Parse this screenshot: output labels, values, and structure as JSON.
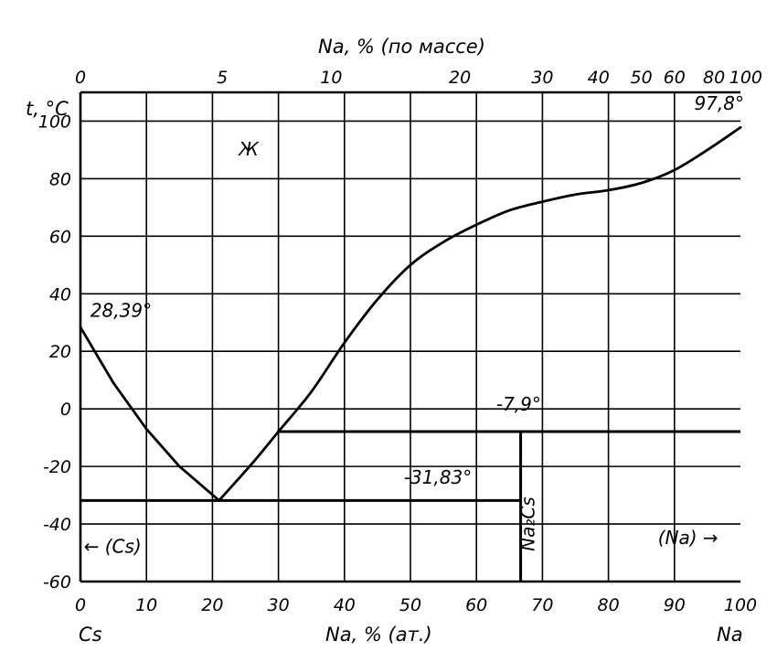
{
  "chart_data": {
    "type": "line",
    "title": "",
    "xlabel": "Na, % (ат.)",
    "x2label": "Na, % (по массе)",
    "ylabel": "t, °C",
    "xlim": [
      0,
      100
    ],
    "ylim": [
      -60,
      110
    ],
    "grid": true,
    "x_ticks": [
      0,
      10,
      20,
      30,
      40,
      50,
      60,
      70,
      80,
      90,
      100
    ],
    "y_ticks": [
      -60,
      -40,
      -20,
      0,
      20,
      40,
      60,
      80,
      100
    ],
    "top_ticks": [
      {
        "label": "0",
        "at": 0
      },
      {
        "label": "5",
        "at": 21.5
      },
      {
        "label": "10",
        "at": 38
      },
      {
        "label": "20",
        "at": 57.5
      },
      {
        "label": "30",
        "at": 70
      },
      {
        "label": "40",
        "at": 78.5
      },
      {
        "label": "50",
        "at": 85
      },
      {
        "label": "60",
        "at": 90
      },
      {
        "label": "80",
        "at": 96
      },
      {
        "label": "100",
        "at": 100
      }
    ],
    "end_labels": {
      "left": "Cs",
      "right": "Na"
    },
    "series": [
      {
        "values": [
          [
            0,
            28.39
          ],
          [
            5,
            9
          ],
          [
            10,
            -7
          ],
          [
            15,
            -20
          ],
          [
            21,
            -31.83
          ]
        ]
      },
      {
        "values": [
          [
            21,
            -31.83
          ],
          [
            26,
            -19
          ],
          [
            30,
            -7.9
          ],
          [
            35,
            6
          ],
          [
            40,
            23
          ],
          [
            45,
            38
          ],
          [
            50,
            50
          ],
          [
            55,
            58
          ],
          [
            60,
            64
          ],
          [
            65,
            69
          ],
          [
            70,
            72
          ],
          [
            75,
            74.5
          ],
          [
            80,
            76
          ],
          [
            85,
            78.5
          ],
          [
            90,
            83
          ],
          [
            95,
            90
          ],
          [
            100,
            97.8
          ]
        ]
      }
    ],
    "horizontal_lines": [
      {
        "y": -31.83,
        "x": [
          0,
          66.7
        ]
      },
      {
        "y": -7.9,
        "x": [
          29.8,
          100
        ]
      }
    ],
    "vertical_lines": [
      {
        "x": 66.7,
        "y": [
          -60,
          -7.9
        ]
      }
    ],
    "annotations": [
      {
        "text": "28,39°",
        "x": 1.5,
        "y": 32
      },
      {
        "text": "97,8°",
        "x": 93,
        "y": 104
      },
      {
        "text": "-7,9°",
        "x": 63,
        "y": -0.5
      },
      {
        "text": "-31,83°",
        "x": 49,
        "y": -26
      },
      {
        "text": "Na₂Cs",
        "x": 68.8,
        "y": -40
      },
      {
        "text": "Ж",
        "x": 24,
        "y": 88
      },
      {
        "text": "← (Cs)",
        "x": 0.5,
        "y": -50
      },
      {
        "text": "(Na) →",
        "x": 87.5,
        "y": -47
      }
    ]
  }
}
